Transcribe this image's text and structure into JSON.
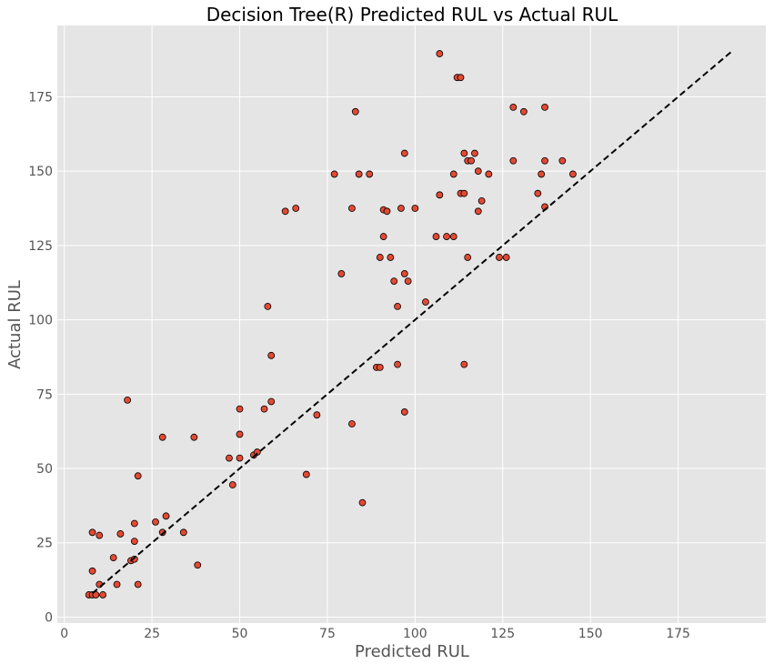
{
  "chart_data": {
    "type": "scatter",
    "title": "Decision Tree(R) Predicted RUL vs Actual RUL",
    "xlabel": "Predicted RUL",
    "ylabel": "Actual RUL",
    "xlim": [
      -2,
      200
    ],
    "ylim": [
      -2,
      199
    ],
    "xticks": [
      "0",
      "25",
      "50",
      "75",
      "100",
      "125",
      "150",
      "175"
    ],
    "yticks": [
      "0",
      "25",
      "50",
      "75",
      "100",
      "125",
      "150",
      "175"
    ],
    "grid": true,
    "background": "#e5e5e5",
    "marker_color": "#e24a33",
    "marker_edge": "#000000",
    "reference_line": {
      "x": [
        8,
        190
      ],
      "y": [
        8,
        190
      ],
      "style": "dashed",
      "color": "#000000"
    },
    "points": [
      [
        7,
        7.5
      ],
      [
        8,
        7.5
      ],
      [
        9,
        7.5
      ],
      [
        11,
        7.5
      ],
      [
        10,
        11
      ],
      [
        8,
        15.5
      ],
      [
        8,
        28.5
      ],
      [
        10,
        27.5
      ],
      [
        15,
        11
      ],
      [
        14,
        20
      ],
      [
        16,
        28
      ],
      [
        19,
        19
      ],
      [
        20,
        19.5
      ],
      [
        20,
        25.5
      ],
      [
        20,
        31.5
      ],
      [
        21,
        11
      ],
      [
        21,
        47.5
      ],
      [
        18,
        73
      ],
      [
        26,
        32
      ],
      [
        28,
        28.5
      ],
      [
        29,
        34
      ],
      [
        28,
        60.5
      ],
      [
        34,
        28.5
      ],
      [
        37,
        60.5
      ],
      [
        38,
        17.5
      ],
      [
        47,
        53.5
      ],
      [
        48,
        44.5
      ],
      [
        50,
        53.5
      ],
      [
        50,
        61.5
      ],
      [
        50,
        70
      ],
      [
        54,
        54.5
      ],
      [
        55,
        55.5
      ],
      [
        57,
        70
      ],
      [
        58,
        104.5
      ],
      [
        59,
        72.5
      ],
      [
        59,
        88
      ],
      [
        63,
        136.5
      ],
      [
        66,
        137.5
      ],
      [
        69,
        48
      ],
      [
        72,
        68
      ],
      [
        77,
        149
      ],
      [
        79,
        115.5
      ],
      [
        82,
        137.5
      ],
      [
        82,
        65
      ],
      [
        83,
        170
      ],
      [
        84,
        149
      ],
      [
        85,
        38.5
      ],
      [
        87,
        149
      ],
      [
        89,
        84
      ],
      [
        90,
        84
      ],
      [
        90,
        121
      ],
      [
        91,
        128
      ],
      [
        91,
        137
      ],
      [
        92,
        136.5
      ],
      [
        93,
        121
      ],
      [
        94,
        113
      ],
      [
        95,
        104.5
      ],
      [
        95,
        85
      ],
      [
        96,
        137.5
      ],
      [
        97,
        156
      ],
      [
        97,
        115.5
      ],
      [
        97,
        69
      ],
      [
        98,
        113
      ],
      [
        100,
        137.5
      ],
      [
        103,
        106
      ],
      [
        106,
        128
      ],
      [
        107,
        142
      ],
      [
        107,
        189.5
      ],
      [
        109,
        128
      ],
      [
        111,
        128
      ],
      [
        111,
        149
      ],
      [
        112,
        181.5
      ],
      [
        113,
        181.5
      ],
      [
        113,
        142.5
      ],
      [
        114,
        156
      ],
      [
        114,
        142.5
      ],
      [
        114,
        85
      ],
      [
        115,
        153.5
      ],
      [
        115,
        121
      ],
      [
        116,
        153.5
      ],
      [
        117,
        156
      ],
      [
        118,
        150
      ],
      [
        118,
        136.5
      ],
      [
        119,
        140
      ],
      [
        121,
        149
      ],
      [
        124,
        121
      ],
      [
        126,
        121
      ],
      [
        128,
        171.5
      ],
      [
        128,
        153.5
      ],
      [
        131,
        170
      ],
      [
        135,
        142.5
      ],
      [
        136,
        149
      ],
      [
        137,
        153.5
      ],
      [
        137,
        171.5
      ],
      [
        137,
        138
      ],
      [
        142,
        153.5
      ],
      [
        145,
        149
      ]
    ]
  }
}
